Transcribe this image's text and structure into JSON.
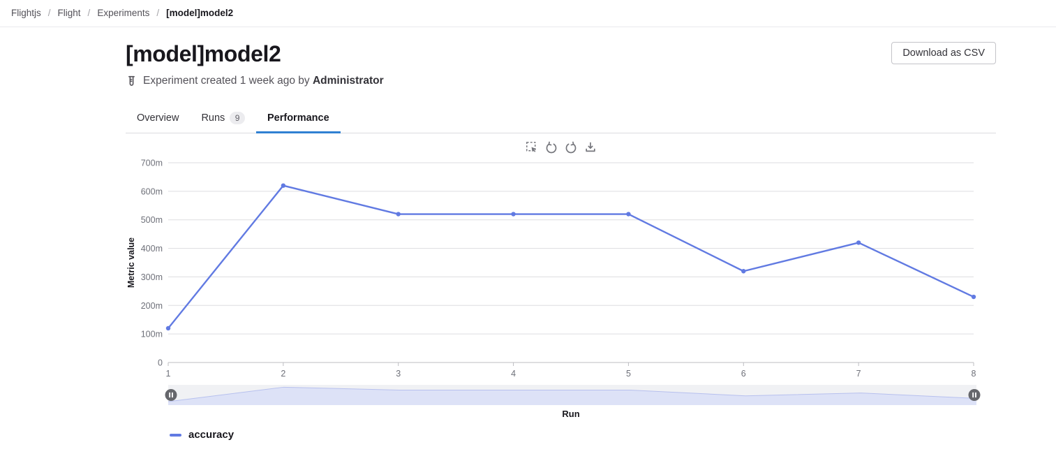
{
  "breadcrumb": {
    "items": [
      "Flightjs",
      "Flight",
      "Experiments"
    ],
    "current": "[model]model2",
    "separator": "/"
  },
  "header": {
    "title": "[model]model2",
    "download_button": "Download as CSV",
    "meta_prefix": "Experiment created 1 week ago by",
    "meta_author": "Administrator"
  },
  "tabs": [
    {
      "label": "Overview",
      "active": false
    },
    {
      "label": "Runs",
      "badge": "9",
      "active": false
    },
    {
      "label": "Performance",
      "active": true
    }
  ],
  "chart_toolbar": {
    "buttons": [
      "box-select-zoom",
      "restore",
      "refresh",
      "download"
    ]
  },
  "chart_data": {
    "type": "line",
    "x": [
      1,
      2,
      3,
      4,
      5,
      6,
      7,
      8
    ],
    "x_tick_labels": [
      "1",
      "2",
      "3",
      "4",
      "5",
      "6",
      "7",
      "8"
    ],
    "series": [
      {
        "name": "accuracy",
        "color": "#617ae2",
        "values": [
          0.12,
          0.62,
          0.52,
          0.52,
          0.52,
          0.32,
          0.42,
          0.23
        ]
      }
    ],
    "y_axis": {
      "ticks": [
        {
          "v": 0,
          "label": "0"
        },
        {
          "v": 0.1,
          "label": "100m"
        },
        {
          "v": 0.2,
          "label": "200m"
        },
        {
          "v": 0.3,
          "label": "300m"
        },
        {
          "v": 0.4,
          "label": "400m"
        },
        {
          "v": 0.5,
          "label": "500m"
        },
        {
          "v": 0.6,
          "label": "600m"
        },
        {
          "v": 0.7,
          "label": "700m"
        }
      ]
    },
    "title": "",
    "xlabel": "Run",
    "ylabel": "Metric value",
    "ylim": [
      0,
      0.7
    ],
    "grid": true,
    "legend_position": "bottom",
    "datazoom_slider": true
  },
  "colors": {
    "line": "#617ae2",
    "grid": "#dddde0",
    "axis": "#bdbdc2",
    "tick_text": "#6e7079",
    "axis_title": "#18171d",
    "slider_bg": "#f0f1f4",
    "slider_fill": "#dde2f7",
    "slider_stroke": "#b7c0ee",
    "handle": "#66676c",
    "active_tab": "#3080d2"
  }
}
